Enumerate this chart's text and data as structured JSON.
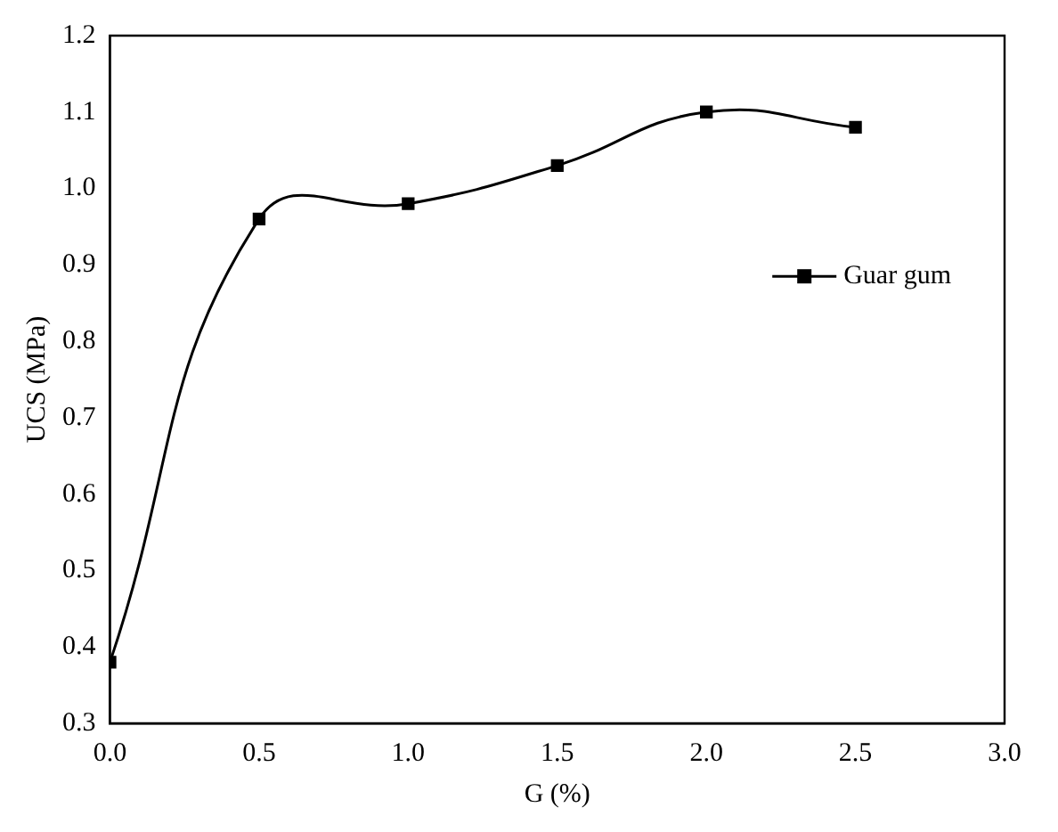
{
  "chart_data": {
    "type": "line",
    "xlabel": "G (%)",
    "ylabel": "UCS (MPa)",
    "x": [
      0,
      0.5,
      1.0,
      1.5,
      2.0,
      2.5
    ],
    "series": [
      {
        "name": "Guar gum",
        "color": "#000000",
        "values": [
          0.38,
          0.96,
          0.98,
          1.03,
          1.1,
          1.08
        ]
      }
    ],
    "xlim": [
      0,
      3
    ],
    "ylim": [
      0.3,
      1.2
    ],
    "xticks": [
      {
        "value": 0,
        "label": "0.0"
      },
      0.5,
      {
        "value": 1,
        "label": "1.0"
      },
      1.5,
      {
        "value": 2,
        "label": "2.0"
      },
      2.5,
      {
        "value": 3,
        "label": "3.0"
      }
    ],
    "yticks": [
      0.3,
      0.4,
      0.5,
      0.6,
      0.7,
      0.8,
      0.9,
      {
        "value": 1,
        "label": "1.0"
      },
      1.1,
      1.2
    ],
    "grid": false,
    "legend": "right",
    "marker": "square",
    "line_style": "solid"
  }
}
